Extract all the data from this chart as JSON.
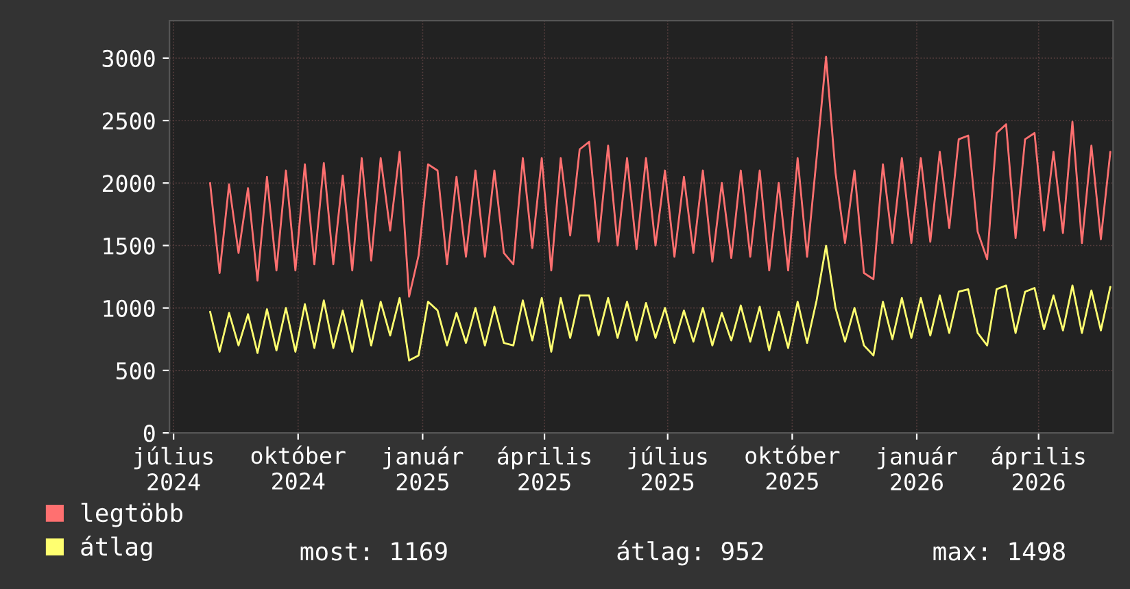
{
  "chart_data": {
    "type": "line",
    "x": [
      "2024-07-28",
      "2024-08-04",
      "2024-08-11",
      "2024-08-18",
      "2024-08-25",
      "2024-09-01",
      "2024-09-08",
      "2024-09-15",
      "2024-09-22",
      "2024-09-29",
      "2024-10-06",
      "2024-10-13",
      "2024-10-20",
      "2024-10-27",
      "2024-11-03",
      "2024-11-10",
      "2024-11-17",
      "2024-11-24",
      "2024-12-01",
      "2024-12-08",
      "2024-12-15",
      "2024-12-22",
      "2024-12-29",
      "2025-01-05",
      "2025-01-12",
      "2025-01-19",
      "2025-01-26",
      "2025-02-02",
      "2025-02-09",
      "2025-02-16",
      "2025-02-23",
      "2025-03-02",
      "2025-03-09",
      "2025-03-16",
      "2025-03-23",
      "2025-03-30",
      "2025-04-06",
      "2025-04-13",
      "2025-04-20",
      "2025-04-27",
      "2025-05-04",
      "2025-05-11",
      "2025-05-18",
      "2025-05-25",
      "2025-06-01",
      "2025-06-08",
      "2025-06-15",
      "2025-06-22",
      "2025-06-29",
      "2025-07-06",
      "2025-07-13",
      "2025-07-20",
      "2025-07-27",
      "2025-08-03",
      "2025-08-10",
      "2025-08-17",
      "2025-08-24",
      "2025-08-31",
      "2025-09-07",
      "2025-09-14",
      "2025-09-21",
      "2025-09-28",
      "2025-10-05",
      "2025-10-12",
      "2025-10-19",
      "2025-10-26",
      "2025-11-02",
      "2025-11-09",
      "2025-11-16",
      "2025-11-23",
      "2025-11-30",
      "2025-12-07",
      "2025-12-14",
      "2025-12-21",
      "2025-12-28",
      "2026-01-04",
      "2026-01-11",
      "2026-01-18",
      "2026-01-25",
      "2026-02-01",
      "2026-02-08",
      "2026-02-15",
      "2026-02-22",
      "2026-03-01",
      "2026-03-08",
      "2026-03-15",
      "2026-03-22",
      "2026-03-29",
      "2026-04-05",
      "2026-04-12",
      "2026-04-19",
      "2026-04-26",
      "2026-05-03",
      "2026-05-10",
      "2026-05-17",
      "2026-05-24"
    ],
    "series": [
      {
        "name": "legtöbb",
        "color": "#ff7070",
        "values": [
          2000,
          1280,
          1990,
          1440,
          1960,
          1220,
          2050,
          1300,
          2100,
          1300,
          2150,
          1350,
          2160,
          1350,
          2060,
          1300,
          2200,
          1380,
          2200,
          1620,
          2250,
          1090,
          1420,
          2150,
          2100,
          1350,
          2050,
          1410,
          2100,
          1410,
          2100,
          1440,
          1350,
          2200,
          1480,
          2200,
          1300,
          2200,
          1580,
          2270,
          2330,
          1530,
          2300,
          1500,
          2200,
          1470,
          2200,
          1500,
          2100,
          1410,
          2050,
          1440,
          2100,
          1370,
          2000,
          1400,
          2100,
          1410,
          2100,
          1300,
          2000,
          1300,
          2200,
          1410,
          2200,
          3010,
          2080,
          1520,
          2100,
          1280,
          1230,
          2150,
          1520,
          2200,
          1520,
          2200,
          1530,
          2250,
          1640,
          2350,
          2380,
          1610,
          1390,
          2400,
          2470,
          1560,
          2350,
          2400,
          1620,
          2250,
          1600,
          2490,
          1520,
          2300,
          1550,
          2250
        ]
      },
      {
        "name": "átlag",
        "color": "#ffff70",
        "values": [
          970,
          650,
          960,
          700,
          950,
          640,
          990,
          660,
          1000,
          650,
          1030,
          680,
          1060,
          680,
          980,
          650,
          1060,
          700,
          1050,
          780,
          1080,
          580,
          620,
          1050,
          980,
          700,
          960,
          720,
          1000,
          700,
          1010,
          720,
          700,
          1060,
          740,
          1080,
          650,
          1080,
          760,
          1100,
          1100,
          780,
          1080,
          760,
          1050,
          740,
          1040,
          760,
          1000,
          720,
          980,
          730,
          1000,
          700,
          960,
          740,
          1020,
          730,
          1010,
          660,
          970,
          680,
          1050,
          720,
          1060,
          1498,
          1000,
          730,
          1000,
          700,
          620,
          1050,
          750,
          1080,
          760,
          1080,
          780,
          1100,
          800,
          1130,
          1150,
          800,
          700,
          1150,
          1180,
          800,
          1130,
          1160,
          830,
          1100,
          820,
          1180,
          800,
          1140,
          820,
          1169
        ]
      }
    ],
    "xlim": [
      "2024-06-28",
      "2026-05-26"
    ],
    "xticks": [
      {
        "value": "2024-07-01",
        "label": "július 2024"
      },
      {
        "value": "2024-10-01",
        "label": "október 2024"
      },
      {
        "value": "2025-01-01",
        "label": "január 2025"
      },
      {
        "value": "2025-04-01",
        "label": "április 2025"
      },
      {
        "value": "2025-07-01",
        "label": "július 2025"
      },
      {
        "value": "2025-10-01",
        "label": "október 2025"
      },
      {
        "value": "2026-01-01",
        "label": "január 2026"
      },
      {
        "value": "2026-04-01",
        "label": "április 2026"
      }
    ],
    "ylim": [
      0,
      3300
    ],
    "yticks": [
      0,
      500,
      1000,
      1500,
      2000,
      2500,
      3000
    ],
    "grid": true,
    "legend": "bottom",
    "annotations": [
      "most: 1169",
      "átlag: 952",
      "max: 1498"
    ]
  }
}
